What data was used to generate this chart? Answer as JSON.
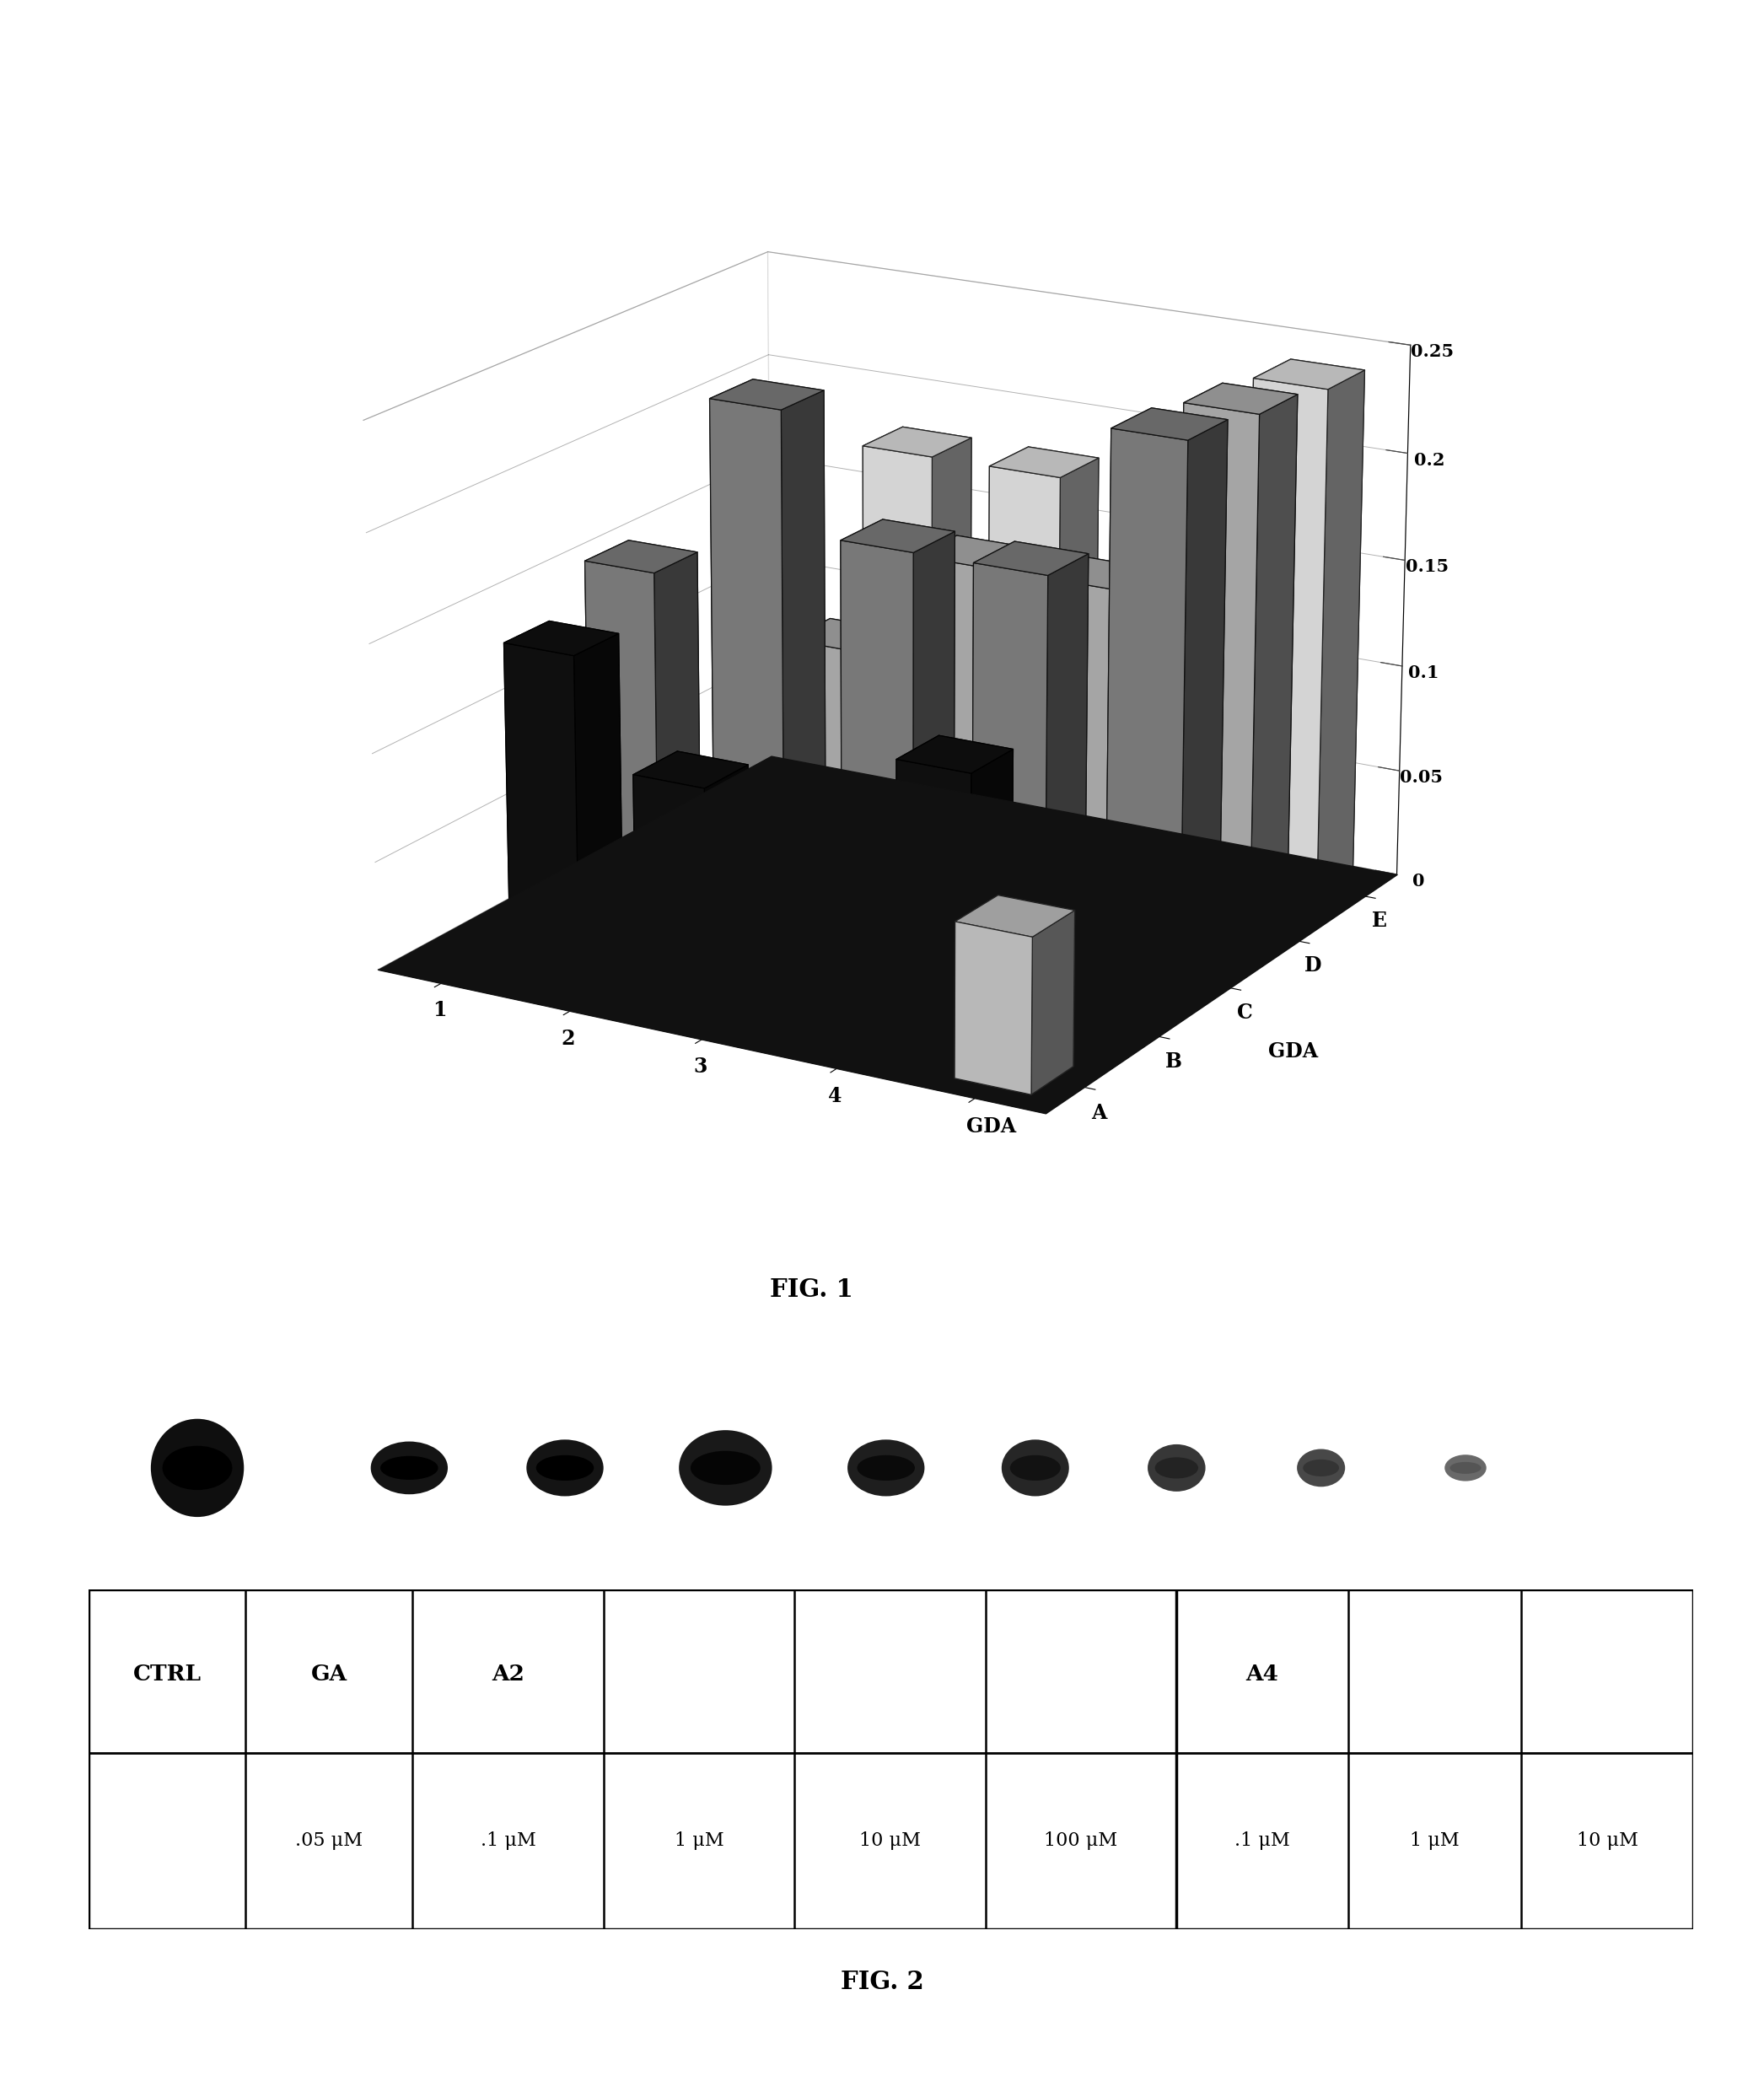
{
  "x_labels": [
    "1",
    "2",
    "3",
    "4",
    "GDA"
  ],
  "z_labels": [
    "A",
    "B",
    "C",
    "D",
    "E"
  ],
  "ylim": [
    0.0,
    0.25
  ],
  "yticks": [
    0.0,
    0.05,
    0.1,
    0.15,
    0.2,
    0.25
  ],
  "ytick_labels": [
    "0",
    "0.05",
    "0.1",
    "0.15",
    "0.2",
    "0.25"
  ],
  "bar_data": [
    [
      0.0,
      0.0,
      0.0,
      0.015,
      0.07
    ],
    [
      0.13,
      0.08,
      0.055,
      0.11,
      0.05
    ],
    [
      0.15,
      0.235,
      0.18,
      0.18,
      0.25
    ],
    [
      0.0,
      0.105,
      0.155,
      0.155,
      0.245
    ],
    [
      0.0,
      0.18,
      0.18,
      0.16,
      0.24
    ]
  ],
  "series_names": [
    "A",
    "B",
    "C",
    "D",
    "E"
  ],
  "series_colors": [
    "#d0d0d0",
    "#111111",
    "#888888",
    "#bbbbbb",
    "#f0f0f0"
  ],
  "series_edge_colors": [
    "#222222",
    "#000000",
    "#111111",
    "#111111",
    "#222222"
  ],
  "floor_color": "#111111",
  "background_color": "#ffffff",
  "blot_x": [
    0.068,
    0.2,
    0.297,
    0.397,
    0.497,
    0.59,
    0.678,
    0.768,
    0.858
  ],
  "blot_w": [
    0.058,
    0.048,
    0.048,
    0.058,
    0.048,
    0.042,
    0.036,
    0.03,
    0.026
  ],
  "blot_h": [
    0.52,
    0.28,
    0.3,
    0.4,
    0.3,
    0.3,
    0.25,
    0.2,
    0.14
  ],
  "blot_gray": [
    15,
    20,
    20,
    25,
    30,
    38,
    55,
    72,
    105
  ],
  "col_widths_raw": [
    0.085,
    0.09,
    0.103,
    0.103,
    0.103,
    0.103,
    0.093,
    0.093,
    0.093
  ],
  "col_labels_r1": [
    "CTRL",
    "GA",
    "A2",
    "",
    "",
    "",
    "A4",
    "",
    ""
  ],
  "col_labels_r2": [
    "",
    ".05 μM",
    ".1 μM",
    "1 μM",
    "10 μM",
    "100 μM",
    ".1 μM",
    "1 μM",
    "10 μM"
  ],
  "col_bold_r1": [
    true,
    true,
    true,
    false,
    false,
    false,
    true,
    false,
    false
  ],
  "fig1_caption": "FIG. 1",
  "fig2_caption": "FIG. 2"
}
